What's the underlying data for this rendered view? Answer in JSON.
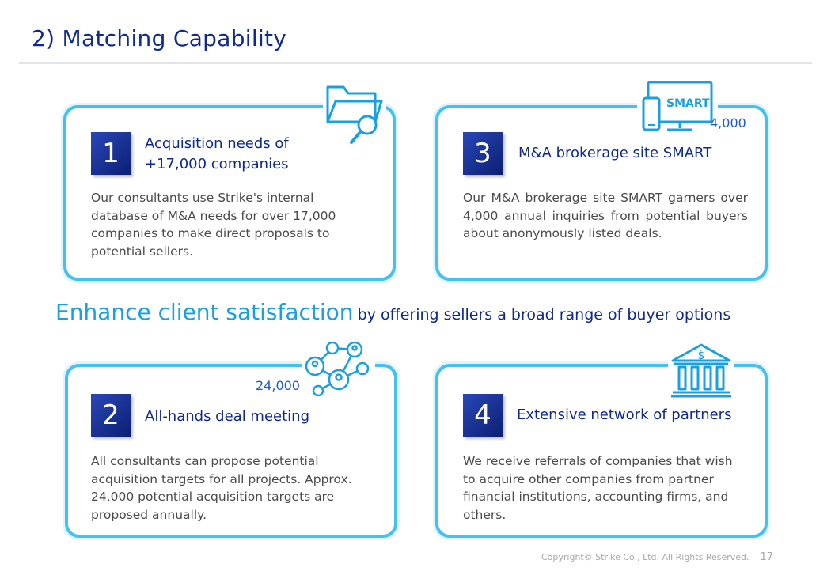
{
  "page_title": "2) Matching Capability",
  "cards": {
    "c1": {
      "number": "1",
      "title": "Acquisition needs of +17,000 companies",
      "body": "Our consultants use Strike's internal database of M&A needs for over 17,000 companies to make direct proposals to potential sellers.",
      "icon": "folder-search-icon"
    },
    "c2": {
      "number": "2",
      "title": "All-hands deal meeting",
      "body": "All consultants can propose potential acquisition targets for all projects. Approx. 24,000 potential acquisition targets are proposed annually.",
      "icon_value": "24,000",
      "icon": "people-network-icon"
    },
    "c3": {
      "number": "3",
      "title": "M&A brokerage site SMART",
      "body": "Our M&A brokerage site SMART garners over 4,000 annual inquiries from potential buyers about anonymously listed deals.",
      "icon_label": "SMART",
      "icon_value": "4,000",
      "icon": "computer-phone-icon"
    },
    "c4": {
      "number": "4",
      "title": "Extensive network of partners",
      "body": "We receive referrals of companies that wish to acquire other companies from partner financial institutions, accounting firms, and others.",
      "icon": "bank-icon"
    }
  },
  "tagline": {
    "emphasis": "Enhance client satisfaction",
    "rest": "by offering sellers a broad range of buyer options"
  },
  "footer": {
    "copyright": "Copyright© Strike Co., Ltd. All Rights Reserved.",
    "page_number": "17"
  },
  "colors": {
    "navy": "#0f2a8c",
    "accent_blue": "#1b9fe0",
    "card_border": "#44c0f2"
  }
}
